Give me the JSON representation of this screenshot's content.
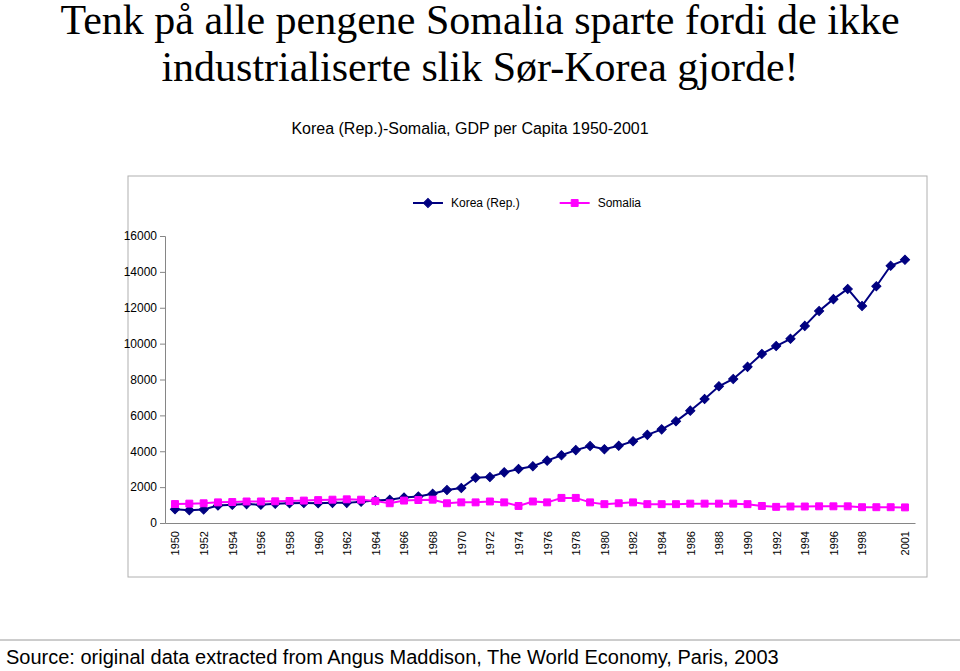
{
  "chart_data": {
    "type": "line",
    "title": "Tenk på alle pengene Somalia sparte fordi de ikke industrialiserte slik Sør-Korea gjorde!",
    "subtitle": "Korea (Rep.)-Somalia, GDP per Capita 1950-2001",
    "source": "Source: original data extracted from Angus Maddison, The World Economy, Paris, 2003",
    "categories": [
      "1950",
      null,
      "1952",
      null,
      "1954",
      null,
      "1956",
      null,
      "1958",
      null,
      "1960",
      null,
      "1962",
      null,
      "1964",
      null,
      "1966",
      null,
      "1968",
      null,
      "1970",
      null,
      "1972",
      null,
      "1974",
      null,
      "1976",
      null,
      "1978",
      null,
      "1980",
      null,
      "1982",
      null,
      "1984",
      null,
      "1986",
      null,
      "1988",
      null,
      "1990",
      null,
      "1992",
      null,
      "1994",
      null,
      "1996",
      null,
      "1998",
      null,
      null,
      "2001"
    ],
    "series": [
      {
        "name": "Korea (Rep.)",
        "color": "#000080",
        "marker": "diamond",
        "line_style": "solid",
        "values": [
          770,
          716,
          753,
          973,
          1013,
          1054,
          1019,
          1070,
          1103,
          1112,
          1105,
          1124,
          1122,
          1185,
          1255,
          1295,
          1415,
          1476,
          1630,
          1837,
          1954,
          2522,
          2561,
          2824,
          3015,
          3162,
          3476,
          3775,
          4064,
          4294,
          4114,
          4302,
          4557,
          4915,
          5220,
          5670,
          6263,
          6916,
          7621,
          8027,
          8704,
          9425,
          9863,
          10268,
          10988,
          11818,
          12479,
          13050,
          12100,
          13200,
          14343,
          14673
        ]
      },
      {
        "name": "Somalia",
        "color": "#ff00ff",
        "marker": "square",
        "line_style": "solid",
        "values": [
          1057,
          1080,
          1100,
          1150,
          1170,
          1200,
          1200,
          1210,
          1230,
          1250,
          1277,
          1300,
          1320,
          1300,
          1220,
          1100,
          1250,
          1280,
          1300,
          1100,
          1150,
          1150,
          1200,
          1150,
          950,
          1200,
          1150,
          1400,
          1400,
          1150,
          1050,
          1100,
          1150,
          1050,
          1050,
          1050,
          1080,
          1080,
          1080,
          1080,
          1050,
          950,
          900,
          920,
          920,
          930,
          930,
          930,
          880,
          880,
          880,
          870
        ]
      }
    ],
    "ylim": [
      0,
      16000
    ],
    "yticks": [
      0,
      2000,
      4000,
      6000,
      8000,
      10000,
      12000,
      14000,
      16000
    ],
    "grid": false,
    "legend": "top"
  }
}
